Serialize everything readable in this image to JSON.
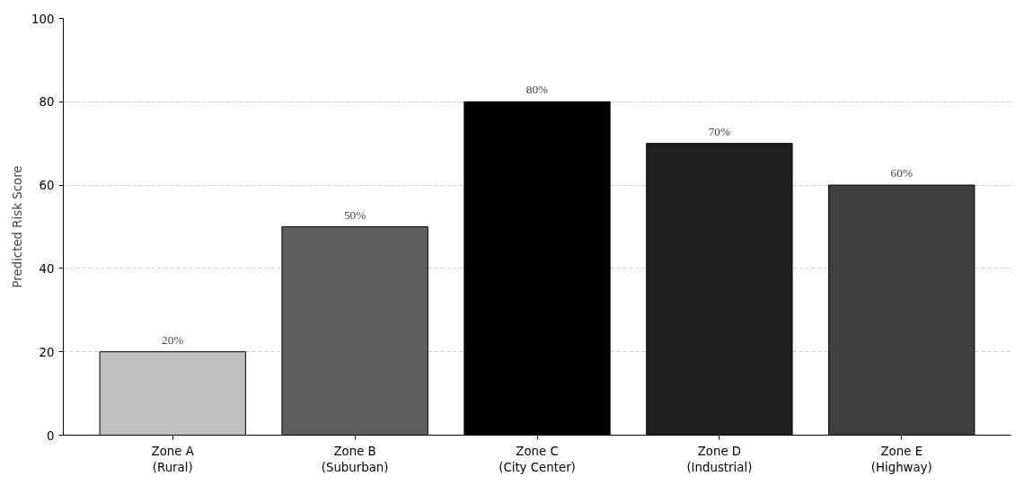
{
  "chart_data": {
    "type": "bar",
    "ylabel": "Predicted Risk Score",
    "categories": [
      "Zone A\n(Rural)",
      "Zone B\n(Suburban)",
      "Zone C\n(City Center)",
      "Zone D\n(Industrial)",
      "Zone E\n(Highway)"
    ],
    "values": [
      20,
      50,
      80,
      70,
      60
    ],
    "colors": [
      "#bfbfbf",
      "#5f5f5f",
      "#000000",
      "#1f1f1f",
      "#3f3f3f"
    ],
    "value_labels": [
      "20%",
      "50%",
      "80%",
      "70%",
      "60%"
    ],
    "ylim": [
      0,
      100
    ],
    "yticks": [
      0,
      20,
      40,
      60,
      80,
      100
    ],
    "grid": "y"
  }
}
